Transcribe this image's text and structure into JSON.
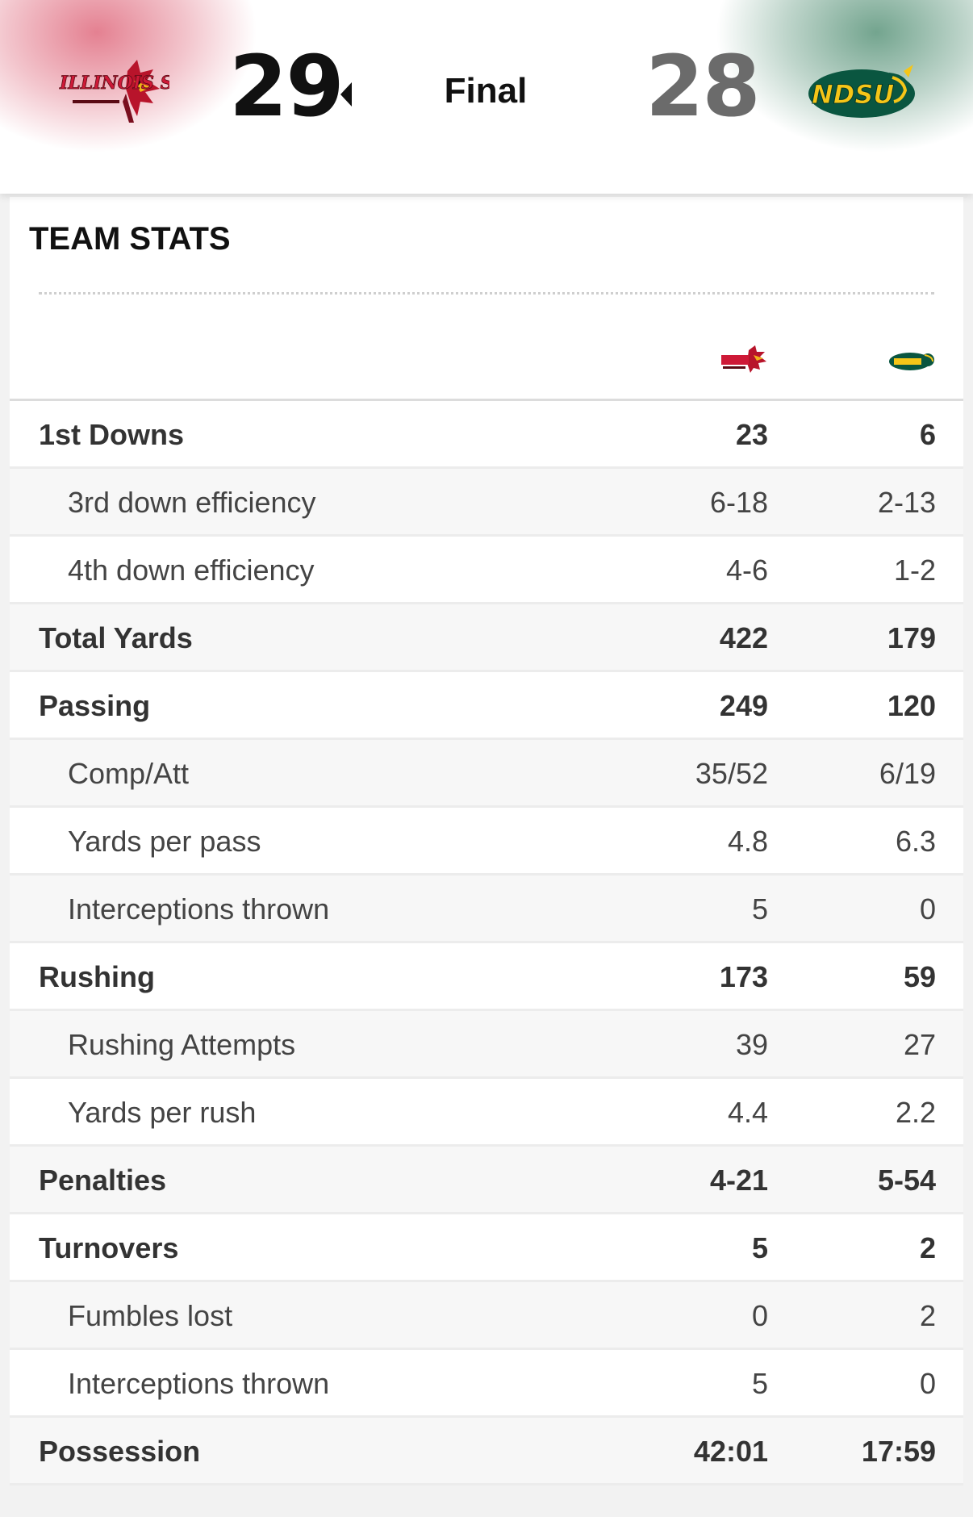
{
  "game": {
    "status": "Final",
    "winner_indicator_icon": "triangle-left-icon"
  },
  "teams": {
    "left": {
      "logo_text": "ILLINOIS STATE",
      "logo_icon": "redbird-logo-icon",
      "score": "29",
      "color": "#ce1937"
    },
    "right": {
      "logo_text": "NDSU",
      "logo_icon": "bison-logo-icon",
      "score": "28",
      "color": "#0a5640"
    }
  },
  "section": {
    "title": "TEAM STATS"
  },
  "stats": [
    {
      "label": "1st Downs",
      "left": "23",
      "right": "6",
      "level": "main"
    },
    {
      "label": "3rd down efficiency",
      "left": "6-18",
      "right": "2-13",
      "level": "sub"
    },
    {
      "label": "4th down efficiency",
      "left": "4-6",
      "right": "1-2",
      "level": "sub"
    },
    {
      "label": "Total Yards",
      "left": "422",
      "right": "179",
      "level": "main"
    },
    {
      "label": "Passing",
      "left": "249",
      "right": "120",
      "level": "main"
    },
    {
      "label": "Comp/Att",
      "left": "35/52",
      "right": "6/19",
      "level": "sub"
    },
    {
      "label": "Yards per pass",
      "left": "4.8",
      "right": "6.3",
      "level": "sub"
    },
    {
      "label": "Interceptions thrown",
      "left": "5",
      "right": "0",
      "level": "sub"
    },
    {
      "label": "Rushing",
      "left": "173",
      "right": "59",
      "level": "main"
    },
    {
      "label": "Rushing Attempts",
      "left": "39",
      "right": "27",
      "level": "sub"
    },
    {
      "label": "Yards per rush",
      "left": "4.4",
      "right": "2.2",
      "level": "sub"
    },
    {
      "label": "Penalties",
      "left": "4-21",
      "right": "5-54",
      "level": "main"
    },
    {
      "label": "Turnovers",
      "left": "5",
      "right": "2",
      "level": "main"
    },
    {
      "label": "Fumbles lost",
      "left": "0",
      "right": "2",
      "level": "sub"
    },
    {
      "label": "Interceptions thrown",
      "left": "5",
      "right": "0",
      "level": "sub"
    },
    {
      "label": "Possession",
      "left": "42:01",
      "right": "17:59",
      "level": "main"
    }
  ]
}
